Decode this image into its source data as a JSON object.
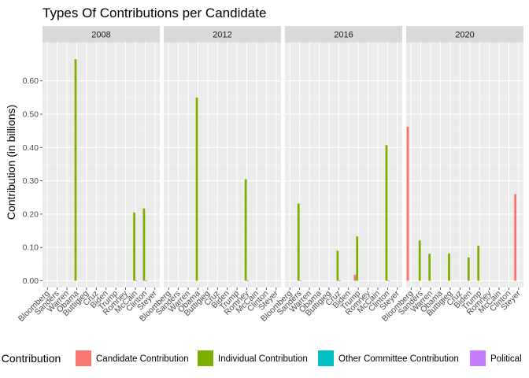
{
  "chart_data": {
    "type": "bar",
    "title": "Types Of Contributions per Candidate",
    "xlabel": "",
    "ylabel": "Contribution (in billions)",
    "ylim": [
      -0.02,
      0.715
    ],
    "yticks": [
      0.0,
      0.1,
      0.2,
      0.3,
      0.4,
      0.5,
      0.6
    ],
    "ytick_labels": [
      "0.00",
      "0.10",
      "0.20",
      "0.30",
      "0.40",
      "0.50",
      "0.60"
    ],
    "grid": true,
    "facets": [
      "2008",
      "2012",
      "2016",
      "2020"
    ],
    "categories": [
      "Bloomberg",
      "Sanders",
      "Warren",
      "Obama",
      "Buttigieg",
      "Cruz",
      "Biden",
      "Trump",
      "Romney",
      "McCain",
      "Clinton",
      "Steyer"
    ],
    "legend": {
      "title": "Type of Contribution",
      "title_visible": "f Contribution",
      "placement": "bottom"
    },
    "series": [
      {
        "name": "Candidate Contribution",
        "color": "#F8766D",
        "values": {
          "2008": [
            0,
            0,
            0,
            0,
            0,
            0,
            0,
            0,
            0,
            0,
            0,
            0
          ],
          "2012": [
            0,
            0,
            0,
            0,
            0,
            0,
            0,
            0,
            0,
            0,
            0,
            0
          ],
          "2016": [
            0,
            0,
            0,
            0,
            0,
            0,
            0,
            0.018,
            0,
            0,
            0,
            0
          ],
          "2020": [
            0.462,
            0,
            0,
            0,
            0,
            0,
            0,
            0,
            0,
            0,
            0,
            0.26
          ]
        }
      },
      {
        "name": "Individual Contribution",
        "color": "#7CAE00",
        "values": {
          "2008": [
            0,
            0,
            0,
            0.665,
            0,
            0,
            0,
            0,
            0,
            0.205,
            0.217,
            0
          ],
          "2012": [
            0,
            0,
            0,
            0.55,
            0,
            0,
            0,
            0,
            0.305,
            0,
            0,
            0
          ],
          "2016": [
            0,
            0.232,
            0,
            0,
            0,
            0.09,
            0,
            0.133,
            0,
            0,
            0.407,
            0
          ],
          "2020": [
            0,
            0.121,
            0.081,
            0,
            0.082,
            0,
            0.07,
            0.105,
            0,
            0,
            0,
            0
          ]
        }
      },
      {
        "name": "Other Committee Contribution",
        "color": "#00BFC4",
        "values": {
          "2008": [
            0,
            0,
            0,
            0,
            0,
            0,
            0,
            0,
            0,
            0.001,
            0.001,
            0
          ],
          "2012": [
            0,
            0,
            0,
            0,
            0,
            0,
            0,
            0,
            0.001,
            0,
            0,
            0
          ],
          "2016": [
            0,
            0.001,
            0,
            0,
            0,
            0.001,
            0,
            0,
            0,
            0,
            0.001,
            0
          ],
          "2020": [
            0,
            0,
            0,
            0,
            0,
            0,
            0,
            0,
            0,
            0,
            0,
            0
          ]
        }
      },
      {
        "name": "Political Party Contribution",
        "name_visible": "Political",
        "color": "#C77CFF",
        "values": {
          "2008": [
            0,
            0,
            0,
            0,
            0,
            0,
            0,
            0,
            0,
            0,
            0,
            0
          ],
          "2012": [
            0,
            0,
            0,
            0,
            0,
            0,
            0,
            0,
            0,
            0,
            0,
            0
          ],
          "2016": [
            0,
            0,
            0,
            0,
            0,
            0,
            0,
            0,
            0,
            0,
            0,
            0
          ],
          "2020": [
            0,
            0,
            0,
            0,
            0,
            0,
            0,
            0,
            0,
            0,
            0,
            0
          ]
        }
      }
    ]
  }
}
